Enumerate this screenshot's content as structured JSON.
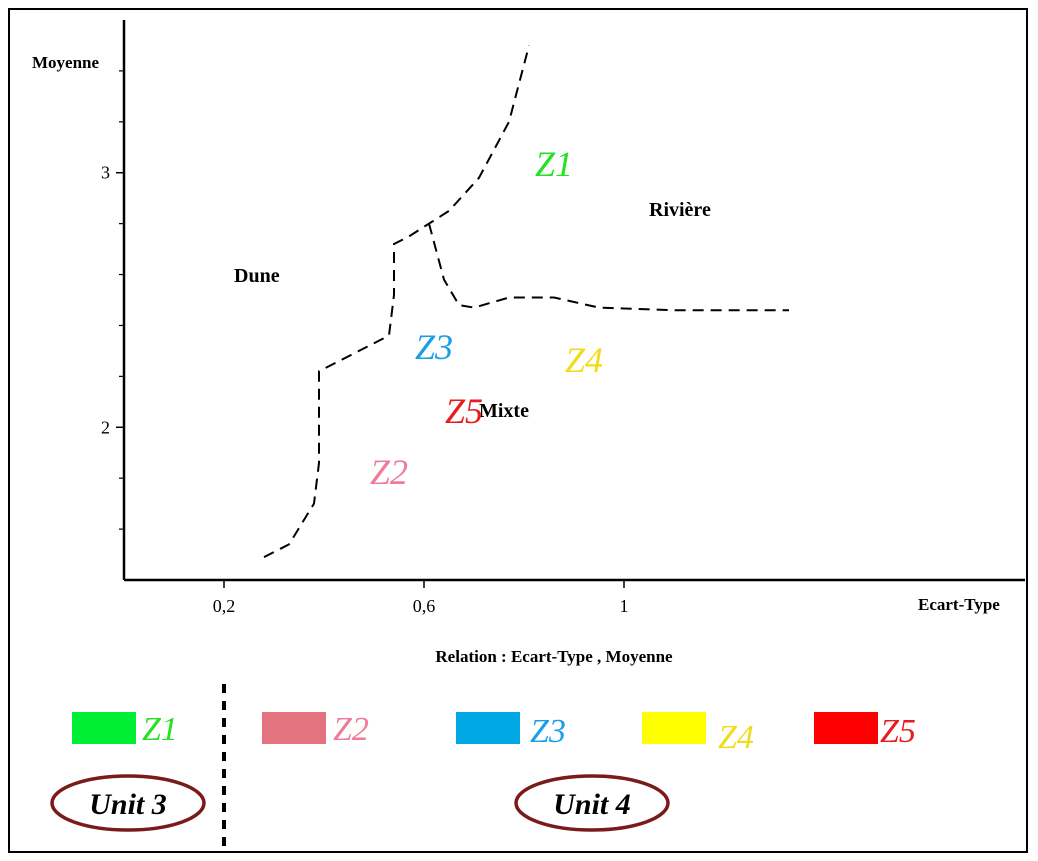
{
  "chart_data": {
    "type": "scatter",
    "title": "Relation : Ecart-Type , Moyenne",
    "xlabel": "Ecart-Type",
    "ylabel": "Moyenne",
    "xlim": [
      0.0,
      1.8
    ],
    "ylim": [
      1.4,
      3.6
    ],
    "x_ticks": [
      {
        "value": 0.2,
        "label": "0,2"
      },
      {
        "value": 0.6,
        "label": "0,6"
      },
      {
        "value": 1.0,
        "label": "1"
      }
    ],
    "y_ticks": [
      {
        "value": 2.0,
        "label": "2"
      },
      {
        "value": 3.0,
        "label": "3"
      }
    ],
    "y_minor_ticks": [
      1.6,
      1.8,
      2.2,
      2.4,
      2.6,
      2.8,
      3.2,
      3.4
    ],
    "regions": [
      {
        "name": "Dune",
        "x": 0.22,
        "y": 2.57
      },
      {
        "name": "Rivière",
        "x": 1.05,
        "y": 2.83
      },
      {
        "name": "Mixte",
        "x": 0.71,
        "y": 2.04
      }
    ],
    "boundaries": [
      {
        "name": "dune-boundary",
        "points": [
          [
            0.28,
            1.49
          ],
          [
            0.33,
            1.54
          ],
          [
            0.38,
            1.7
          ],
          [
            0.39,
            1.86
          ],
          [
            0.39,
            2.22
          ],
          [
            0.43,
            2.26
          ],
          [
            0.53,
            2.36
          ],
          [
            0.54,
            2.52
          ],
          [
            0.54,
            2.72
          ],
          [
            0.57,
            2.75
          ],
          [
            0.61,
            2.8
          ],
          [
            0.65,
            2.85
          ],
          [
            0.71,
            2.98
          ],
          [
            0.77,
            3.2
          ],
          [
            0.81,
            3.5
          ]
        ]
      },
      {
        "name": "river-mixte-boundary",
        "points": [
          [
            0.61,
            2.8
          ],
          [
            0.64,
            2.58
          ],
          [
            0.67,
            2.48
          ],
          [
            0.7,
            2.47
          ],
          [
            0.77,
            2.51
          ],
          [
            0.86,
            2.51
          ],
          [
            0.95,
            2.47
          ],
          [
            1.1,
            2.46
          ],
          [
            1.33,
            2.46
          ]
        ]
      }
    ],
    "series": [
      {
        "name": "Z1",
        "x": 0.86,
        "y": 3.02,
        "color": "#22e222"
      },
      {
        "name": "Z2",
        "x": 0.53,
        "y": 1.81,
        "color": "#f07a98"
      },
      {
        "name": "Z3",
        "x": 0.62,
        "y": 2.3,
        "color": "#1a9ee8"
      },
      {
        "name": "Z4",
        "x": 0.92,
        "y": 2.25,
        "color": "#f0dc1a"
      },
      {
        "name": "Z5",
        "x": 0.68,
        "y": 2.05,
        "color": "#e81c1c"
      }
    ]
  },
  "legend": {
    "items": [
      {
        "label": "Z1",
        "swatch": "#00ee33",
        "text_color": "#22e222"
      },
      {
        "label": "Z2",
        "swatch": "#e47380",
        "text_color": "#f07a98"
      },
      {
        "label": "Z3",
        "swatch": "#00a8e6",
        "text_color": "#1a9ee8"
      },
      {
        "label": "Z4",
        "swatch": "#ffff00",
        "text_color": "#f0dc1a"
      },
      {
        "label": "Z5",
        "swatch": "#ff0000",
        "text_color": "#e81c1c"
      }
    ],
    "units": [
      {
        "label": "Unit 3",
        "ellipse_color": "#7a1a1a"
      },
      {
        "label": "Unit 4",
        "ellipse_color": "#7a1a1a"
      }
    ]
  }
}
